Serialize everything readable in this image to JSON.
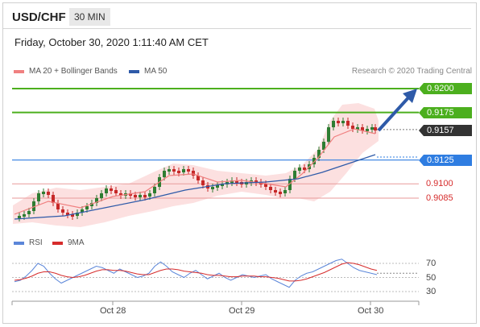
{
  "header": {
    "pair": "USD/CHF",
    "timeframe": "30 MIN",
    "datetime": "Friday, October 30, 2020 1:11:40 AM CET"
  },
  "legend": {
    "ma20_label": "MA 20 + Bollinger Bands",
    "ma20_color": "#f08080",
    "ma50_label": "MA 50",
    "ma50_color": "#2e5aa8"
  },
  "copyright": "Research © 2020 Trading Central",
  "levels": {
    "resistance_2": "0.9200",
    "resistance_1": "0.9175",
    "last_price": "0.9157",
    "pivot": "0.9125",
    "support_1": "0.9100",
    "support_2": "0.9085"
  },
  "colors": {
    "resistance": "#4caf1e",
    "pivot": "#2f7de1",
    "support": "#d62c2c",
    "last_price": "#333333",
    "candle_up": "#2e7d32",
    "candle_down": "#c62828",
    "bands_fill": "#fbd5d5",
    "arrow": "#2e5aa8",
    "rsi": "#5b86d9",
    "rsi_ma": "#d62c2c"
  },
  "rsi": {
    "rsi_label": "RSI",
    "ma_label": "9MA",
    "levels": [
      "70",
      "50",
      "30"
    ]
  },
  "dates": [
    "Oct 28",
    "Oct 29",
    "Oct 30"
  ]
}
